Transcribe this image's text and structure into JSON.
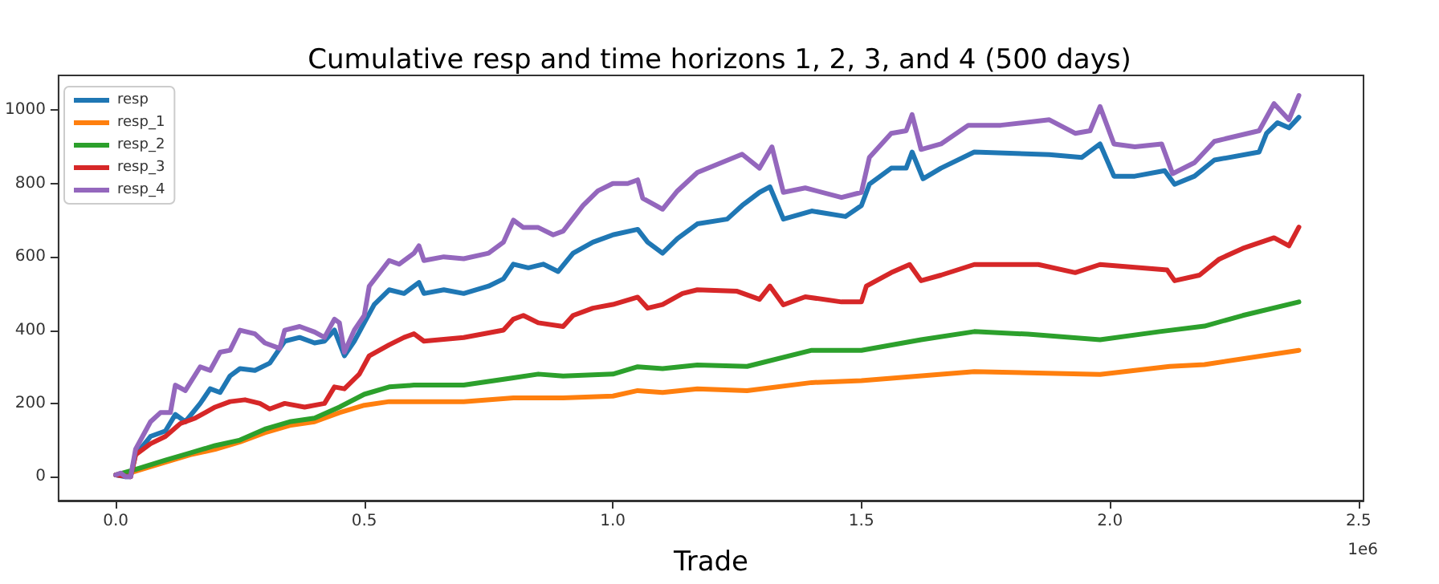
{
  "chart_data": {
    "type": "line",
    "title": "Cumulative resp and time horizons 1, 2, 3, and 4 (500 days)",
    "xlabel": "Trade",
    "annotations": [
      "1e6"
    ],
    "xlim": [
      -0.115,
      2.51
    ],
    "xticks": [
      {
        "value": 0,
        "label": "0.0"
      },
      {
        "value": 0.5,
        "label": "0.5"
      },
      {
        "value": 1,
        "label": "1.0"
      },
      {
        "value": 1.5,
        "label": "1.5"
      },
      {
        "value": 2,
        "label": "2.0"
      },
      {
        "value": 2.5,
        "label": "2.5"
      }
    ],
    "ylim": [
      -65,
      1095
    ],
    "yticks": [
      0,
      200,
      400,
      600,
      800,
      1000
    ],
    "grid": false,
    "legend": "top left",
    "line_style": "solid",
    "marker": "none",
    "series": [
      {
        "name": "resp",
        "color": "#1f77b4",
        "x": [
          0,
          0.02,
          0.03,
          0.04,
          0.07,
          0.1,
          0.12,
          0.14,
          0.17,
          0.19,
          0.21,
          0.23,
          0.25,
          0.28,
          0.31,
          0.34,
          0.37,
          0.4,
          0.42,
          0.44,
          0.46,
          0.48,
          0.5,
          0.52,
          0.55,
          0.58,
          0.61,
          0.62,
          0.66,
          0.7,
          0.75,
          0.78,
          0.8,
          0.83,
          0.86,
          0.89,
          0.92,
          0.96,
          1.0,
          1.05,
          1.07,
          1.1,
          1.13,
          1.17,
          1.23,
          1.26,
          1.295,
          1.316,
          1.343,
          1.4,
          1.468,
          1.5,
          1.516,
          1.56,
          1.59,
          1.602,
          1.624,
          1.66,
          1.727,
          1.878,
          1.943,
          1.98,
          2.008,
          2.05,
          2.11,
          2.13,
          2.17,
          2.21,
          2.3,
          2.315,
          2.337,
          2.36,
          2.38
        ],
        "values": [
          5,
          0,
          0,
          60,
          110,
          125,
          170,
          150,
          200,
          240,
          230,
          275,
          295,
          290,
          310,
          370,
          380,
          365,
          370,
          400,
          330,
          370,
          420,
          470,
          510,
          500,
          530,
          500,
          510,
          500,
          520,
          540,
          580,
          570,
          580,
          560,
          610,
          640,
          660,
          675,
          640,
          610,
          650,
          690,
          703,
          740,
          776,
          791,
          703,
          725,
          710,
          740,
          798,
          842,
          842,
          886,
          813,
          842,
          886,
          879,
          871,
          908,
          820,
          820,
          835,
          798,
          820,
          864,
          886,
          937,
          966,
          952,
          981
        ]
      },
      {
        "name": "resp_1",
        "color": "#ff7f0e",
        "x": [
          0,
          0.04,
          0.1,
          0.15,
          0.2,
          0.25,
          0.3,
          0.35,
          0.4,
          0.45,
          0.5,
          0.55,
          0.7,
          0.8,
          0.9,
          1.0,
          1.05,
          1.1,
          1.17,
          1.27,
          1.4,
          1.5,
          1.727,
          1.98,
          2.12,
          2.19,
          2.38
        ],
        "values": [
          5,
          15,
          40,
          60,
          75,
          95,
          120,
          140,
          150,
          175,
          195,
          205,
          205,
          215,
          215,
          220,
          235,
          230,
          240,
          235,
          257,
          262,
          287,
          279,
          301,
          306,
          345
        ]
      },
      {
        "name": "resp_2",
        "color": "#2ca02c",
        "x": [
          0,
          0.04,
          0.1,
          0.15,
          0.2,
          0.25,
          0.3,
          0.35,
          0.4,
          0.45,
          0.5,
          0.55,
          0.6,
          0.7,
          0.8,
          0.85,
          0.9,
          1.0,
          1.05,
          1.1,
          1.17,
          1.27,
          1.4,
          1.5,
          1.62,
          1.727,
          1.835,
          1.98,
          2.1,
          2.19,
          2.267,
          2.38
        ],
        "values": [
          5,
          20,
          45,
          65,
          85,
          100,
          130,
          150,
          160,
          190,
          225,
          245,
          250,
          250,
          270,
          280,
          275,
          280,
          300,
          295,
          305,
          301,
          345,
          345,
          374,
          396,
          389,
          374,
          396,
          411,
          440,
          477
        ]
      },
      {
        "name": "resp_3",
        "color": "#d62728",
        "x": [
          0,
          0.03,
          0.04,
          0.07,
          0.1,
          0.13,
          0.16,
          0.18,
          0.2,
          0.23,
          0.26,
          0.29,
          0.31,
          0.34,
          0.38,
          0.42,
          0.44,
          0.46,
          0.49,
          0.51,
          0.55,
          0.58,
          0.6,
          0.62,
          0.7,
          0.78,
          0.8,
          0.82,
          0.85,
          0.9,
          0.92,
          0.96,
          1.0,
          1.05,
          1.07,
          1.1,
          1.14,
          1.17,
          1.25,
          1.295,
          1.316,
          1.343,
          1.387,
          1.46,
          1.5,
          1.51,
          1.56,
          1.597,
          1.62,
          1.66,
          1.727,
          1.856,
          1.93,
          1.98,
          2.115,
          2.13,
          2.18,
          2.22,
          2.267,
          2.33,
          2.36,
          2.38
        ],
        "values": [
          5,
          0,
          60,
          90,
          110,
          145,
          160,
          175,
          190,
          205,
          210,
          200,
          185,
          200,
          190,
          200,
          245,
          240,
          280,
          330,
          360,
          380,
          390,
          370,
          380,
          400,
          430,
          440,
          420,
          410,
          440,
          460,
          470,
          490,
          460,
          470,
          500,
          510,
          506,
          484,
          520,
          469,
          491,
          477,
          477,
          520,
          557,
          579,
          535,
          550,
          579,
          579,
          557,
          579,
          564,
          535,
          550,
          594,
          623,
          652,
          630,
          681
        ]
      },
      {
        "name": "resp_4",
        "color": "#9467bd",
        "x": [
          0,
          0.01,
          0.02,
          0.03,
          0.04,
          0.07,
          0.09,
          0.11,
          0.12,
          0.14,
          0.17,
          0.19,
          0.21,
          0.23,
          0.25,
          0.28,
          0.3,
          0.33,
          0.34,
          0.37,
          0.4,
          0.42,
          0.44,
          0.45,
          0.46,
          0.48,
          0.5,
          0.51,
          0.55,
          0.57,
          0.6,
          0.61,
          0.62,
          0.66,
          0.7,
          0.75,
          0.78,
          0.8,
          0.82,
          0.85,
          0.88,
          0.9,
          0.94,
          0.97,
          1.0,
          1.03,
          1.05,
          1.06,
          1.1,
          1.13,
          1.17,
          1.26,
          1.295,
          1.32,
          1.343,
          1.387,
          1.46,
          1.5,
          1.516,
          1.56,
          1.59,
          1.602,
          1.62,
          1.66,
          1.715,
          1.78,
          1.878,
          1.93,
          1.96,
          1.98,
          2.008,
          2.05,
          2.104,
          2.126,
          2.17,
          2.21,
          2.3,
          2.33,
          2.36,
          2.38
        ],
        "values": [
          5,
          10,
          0,
          0,
          75,
          150,
          175,
          175,
          250,
          235,
          300,
          290,
          340,
          345,
          400,
          390,
          365,
          350,
          400,
          410,
          395,
          380,
          430,
          420,
          340,
          400,
          440,
          520,
          590,
          580,
          610,
          630,
          590,
          600,
          595,
          610,
          640,
          700,
          680,
          680,
          660,
          670,
          740,
          780,
          800,
          800,
          810,
          760,
          730,
          780,
          830,
          880,
          842,
          900,
          776,
          788,
          762,
          776,
          871,
          937,
          944,
          988,
          893,
          908,
          959,
          959,
          974,
          937,
          944,
          1010,
          908,
          900,
          908,
          827,
          857,
          915,
          944,
          1018,
          974,
          1040
        ]
      }
    ]
  }
}
